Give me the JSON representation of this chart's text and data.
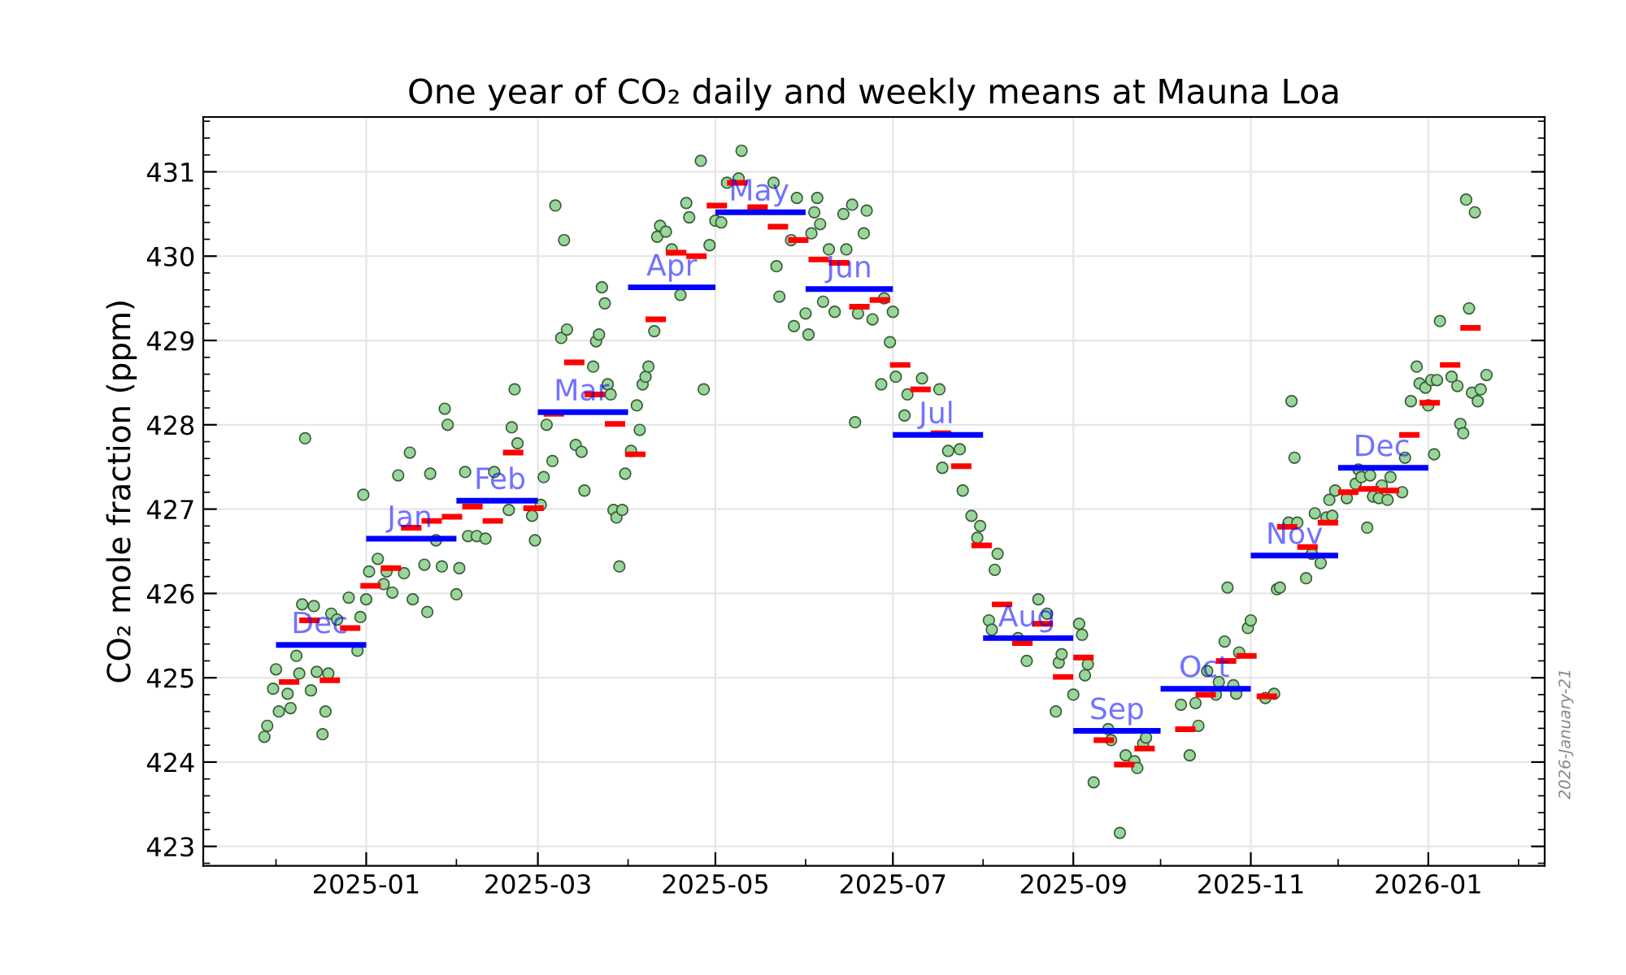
{
  "chart_data": {
    "type": "scatter",
    "title": "One year of CO₂ daily and weekly means at Mauna Loa",
    "ylabel": "CO₂ mole fraction (ppm)",
    "xlim": [
      "2024-11-06",
      "2026-02-10"
    ],
    "xticks": [
      "2025-01",
      "2025-03",
      "2025-05",
      "2025-07",
      "2025-09",
      "2025-11",
      "2026-01"
    ],
    "ylim": [
      422.77,
      431.65
    ],
    "yticks": [
      423,
      424,
      425,
      426,
      427,
      428,
      429,
      430,
      431
    ],
    "grid": true,
    "series": [
      {
        "type": "scatter",
        "marker": "circle",
        "color": "#99d699",
        "x": [
          "2024-11-27",
          "2024-11-28",
          "2024-11-30",
          "2024-12-01",
          "2024-12-02",
          "2024-12-05",
          "2024-12-06",
          "2024-12-08",
          "2024-12-09",
          "2024-12-10",
          "2024-12-11",
          "2024-12-13",
          "2024-12-14",
          "2024-12-15",
          "2024-12-17",
          "2024-12-18",
          "2024-12-19",
          "2024-12-20",
          "2024-12-22",
          "2024-12-26",
          "2024-12-29",
          "2024-12-30",
          "2024-12-31",
          "2025-01-01",
          "2025-01-02",
          "2025-01-05",
          "2025-01-07",
          "2025-01-08",
          "2025-01-10",
          "2025-01-12",
          "2025-01-14",
          "2025-01-16",
          "2025-01-17",
          "2025-01-21",
          "2025-01-22",
          "2025-01-23",
          "2025-01-25",
          "2025-01-27",
          "2025-01-28",
          "2025-01-29",
          "2025-02-01",
          "2025-02-02",
          "2025-02-04",
          "2025-02-05",
          "2025-02-08",
          "2025-02-11",
          "2025-02-14",
          "2025-02-19",
          "2025-02-20",
          "2025-02-21",
          "2025-02-22",
          "2025-02-27",
          "2025-02-28",
          "2025-03-02",
          "2025-03-03",
          "2025-03-04",
          "2025-03-06",
          "2025-03-07",
          "2025-03-09",
          "2025-03-10",
          "2025-03-11",
          "2025-03-14",
          "2025-03-16",
          "2025-03-17",
          "2025-03-20",
          "2025-03-21",
          "2025-03-22",
          "2025-03-23",
          "2025-03-24",
          "2025-03-25",
          "2025-03-26",
          "2025-03-27",
          "2025-03-28",
          "2025-03-29",
          "2025-03-30",
          "2025-03-31",
          "2025-04-02",
          "2025-04-04",
          "2025-04-05",
          "2025-04-06",
          "2025-04-07",
          "2025-04-08",
          "2025-04-10",
          "2025-04-11",
          "2025-04-12",
          "2025-04-14",
          "2025-04-16",
          "2025-04-19",
          "2025-04-21",
          "2025-04-22",
          "2025-04-26",
          "2025-04-27",
          "2025-04-29",
          "2025-05-01",
          "2025-05-03",
          "2025-05-05",
          "2025-05-09",
          "2025-05-10",
          "2025-05-21",
          "2025-05-22",
          "2025-05-23",
          "2025-05-27",
          "2025-05-28",
          "2025-05-29",
          "2025-06-01",
          "2025-06-02",
          "2025-06-03",
          "2025-06-04",
          "2025-06-05",
          "2025-06-06",
          "2025-06-07",
          "2025-06-09",
          "2025-06-11",
          "2025-06-14",
          "2025-06-15",
          "2025-06-17",
          "2025-06-18",
          "2025-06-19",
          "2025-06-21",
          "2025-06-22",
          "2025-06-24",
          "2025-06-27",
          "2025-06-28",
          "2025-06-30",
          "2025-07-01",
          "2025-07-02",
          "2025-07-05",
          "2025-07-06",
          "2025-07-11",
          "2025-07-17",
          "2025-07-18",
          "2025-07-20",
          "2025-07-24",
          "2025-07-25",
          "2025-07-28",
          "2025-07-30",
          "2025-07-31",
          "2025-08-03",
          "2025-08-04",
          "2025-08-05",
          "2025-08-06",
          "2025-08-13",
          "2025-08-16",
          "2025-08-20",
          "2025-08-23",
          "2025-08-26",
          "2025-08-27",
          "2025-08-28",
          "2025-09-01",
          "2025-09-03",
          "2025-09-04",
          "2025-09-05",
          "2025-09-06",
          "2025-09-08",
          "2025-09-13",
          "2025-09-14",
          "2025-09-17",
          "2025-09-19",
          "2025-09-22",
          "2025-09-23",
          "2025-09-25",
          "2025-09-26",
          "2025-10-08",
          "2025-10-11",
          "2025-10-13",
          "2025-10-14",
          "2025-10-17",
          "2025-10-20",
          "2025-10-21",
          "2025-10-23",
          "2025-10-24",
          "2025-10-26",
          "2025-10-27",
          "2025-10-28",
          "2025-10-31",
          "2025-11-01",
          "2025-11-06",
          "2025-11-09",
          "2025-11-10",
          "2025-11-11",
          "2025-11-14",
          "2025-11-15",
          "2025-11-16",
          "2025-11-17",
          "2025-11-20",
          "2025-11-22",
          "2025-11-23",
          "2025-11-25",
          "2025-11-27",
          "2025-11-28",
          "2025-11-29",
          "2025-11-30",
          "2025-12-04",
          "2025-12-07",
          "2025-12-08",
          "2025-12-09",
          "2025-12-11",
          "2025-12-12",
          "2025-12-13",
          "2025-12-15",
          "2025-12-16",
          "2025-12-18",
          "2025-12-19",
          "2025-12-23",
          "2025-12-24",
          "2025-12-26",
          "2025-12-28",
          "2025-12-29",
          "2025-12-31",
          "2026-01-01",
          "2026-01-02",
          "2026-01-03",
          "2026-01-04",
          "2026-01-05",
          "2026-01-09",
          "2026-01-11",
          "2026-01-12",
          "2026-01-13",
          "2026-01-14",
          "2026-01-15",
          "2026-01-16",
          "2026-01-17",
          "2026-01-18",
          "2026-01-19",
          "2026-01-21"
        ],
        "values": [
          424.3,
          424.43,
          424.87,
          425.1,
          424.6,
          424.81,
          424.64,
          425.26,
          425.05,
          425.87,
          427.84,
          424.85,
          425.85,
          425.07,
          424.33,
          424.6,
          425.05,
          425.76,
          425.69,
          425.95,
          425.32,
          425.72,
          427.17,
          425.93,
          426.26,
          426.41,
          426.11,
          426.26,
          426.01,
          427.4,
          426.24,
          427.67,
          425.93,
          426.34,
          425.78,
          427.42,
          426.63,
          426.32,
          428.19,
          428.0,
          425.99,
          426.3,
          427.44,
          426.68,
          426.68,
          426.65,
          427.44,
          426.99,
          427.97,
          428.42,
          427.78,
          426.92,
          426.63,
          427.05,
          427.38,
          428.0,
          427.57,
          430.6,
          429.03,
          430.19,
          429.13,
          427.76,
          427.68,
          427.22,
          428.69,
          428.99,
          429.07,
          429.63,
          429.44,
          428.48,
          428.36,
          426.99,
          426.9,
          426.32,
          426.99,
          427.42,
          427.69,
          428.23,
          427.94,
          428.48,
          428.57,
          428.69,
          429.11,
          430.23,
          430.36,
          430.29,
          430.08,
          429.54,
          430.63,
          430.46,
          431.13,
          428.42,
          430.13,
          430.42,
          430.4,
          430.87,
          430.92,
          431.25,
          430.87,
          429.88,
          429.52,
          430.19,
          429.17,
          430.69,
          429.32,
          429.07,
          430.27,
          430.52,
          430.69,
          430.38,
          429.46,
          430.08,
          429.34,
          430.5,
          430.08,
          430.61,
          428.03,
          429.32,
          430.27,
          430.54,
          429.25,
          428.48,
          429.5,
          428.98,
          429.34,
          428.57,
          428.11,
          428.36,
          428.55,
          428.42,
          427.49,
          427.69,
          427.71,
          427.22,
          426.92,
          426.66,
          426.8,
          425.68,
          425.57,
          426.28,
          426.47,
          425.47,
          425.2,
          425.93,
          425.76,
          424.6,
          425.18,
          425.28,
          424.8,
          425.64,
          425.51,
          425.03,
          425.16,
          423.76,
          424.39,
          424.26,
          423.16,
          424.08,
          424.01,
          423.93,
          424.22,
          424.29,
          424.68,
          424.08,
          424.7,
          424.43,
          425.08,
          424.8,
          424.95,
          425.43,
          426.07,
          424.91,
          424.81,
          425.3,
          425.59,
          425.68,
          424.76,
          424.81,
          426.05,
          426.07,
          426.84,
          428.28,
          427.61,
          426.84,
          426.18,
          426.47,
          426.95,
          426.36,
          426.9,
          427.11,
          426.92,
          427.22,
          427.13,
          427.3,
          427.47,
          427.38,
          426.78,
          427.4,
          427.15,
          427.13,
          427.28,
          427.11,
          427.38,
          427.2,
          427.61,
          428.28,
          428.69,
          428.49,
          428.44,
          428.23,
          428.53,
          427.65,
          428.53,
          429.23,
          428.57,
          428.46,
          428.01,
          427.9,
          430.67,
          429.38,
          428.38,
          430.52,
          428.28,
          428.42,
          428.59
        ]
      },
      {
        "type": "line",
        "color": "#ff0000",
        "x": [
          "2024-12-02",
          "2024-12-09",
          null,
          "2024-12-09",
          "2024-12-16",
          null,
          "2024-12-16",
          "2024-12-23",
          null,
          "2024-12-23",
          "2024-12-30",
          null,
          "2024-12-30",
          "2025-01-06",
          null,
          "2025-01-06",
          "2025-01-13",
          null,
          "2025-01-13",
          "2025-01-20",
          null,
          "2025-01-20",
          "2025-01-27",
          null,
          "2025-01-27",
          "2025-02-03",
          null,
          "2025-02-03",
          "2025-02-10",
          null,
          "2025-02-10",
          "2025-02-17",
          null,
          "2025-02-17",
          "2025-02-24",
          null,
          "2025-02-24",
          "2025-03-03",
          null,
          "2025-03-03",
          "2025-03-10",
          null,
          "2025-03-10",
          "2025-03-17",
          null,
          "2025-03-17",
          "2025-03-24",
          null,
          "2025-03-24",
          "2025-03-31",
          null,
          "2025-03-31",
          "2025-04-07",
          null,
          "2025-04-07",
          "2025-04-14",
          null,
          "2025-04-14",
          "2025-04-21",
          null,
          "2025-04-21",
          "2025-04-28",
          null,
          "2025-04-28",
          "2025-05-05",
          null,
          "2025-05-05",
          "2025-05-12",
          null,
          "2025-05-12",
          "2025-05-19",
          null,
          "2025-05-19",
          "2025-05-26",
          null,
          "2025-05-26",
          "2025-06-02",
          null,
          "2025-06-02",
          "2025-06-09",
          null,
          "2025-06-09",
          "2025-06-16",
          null,
          "2025-06-16",
          "2025-06-23",
          null,
          "2025-06-23",
          "2025-06-30",
          null,
          "2025-06-30",
          "2025-07-07",
          null,
          "2025-07-07",
          "2025-07-14",
          null,
          "2025-07-14",
          "2025-07-21",
          null,
          "2025-07-21",
          "2025-07-28",
          null,
          "2025-07-28",
          "2025-08-04",
          null,
          "2025-08-04",
          "2025-08-11",
          null,
          "2025-08-11",
          "2025-08-18",
          null,
          "2025-08-18",
          "2025-08-25",
          null,
          "2025-08-25",
          "2025-09-01",
          null,
          "2025-09-01",
          "2025-09-08",
          null,
          "2025-09-08",
          "2025-09-15",
          null,
          "2025-09-15",
          "2025-09-22",
          null,
          "2025-09-22",
          "2025-09-29",
          null,
          "2025-10-06",
          "2025-10-13",
          null,
          "2025-10-13",
          "2025-10-20",
          null,
          "2025-10-20",
          "2025-10-27",
          null,
          "2025-10-27",
          "2025-11-03",
          null,
          "2025-11-03",
          "2025-11-10",
          null,
          "2025-11-10",
          "2025-11-17",
          null,
          "2025-11-17",
          "2025-11-24",
          null,
          "2025-11-24",
          "2025-12-01",
          null,
          "2025-12-01",
          "2025-12-08",
          null,
          "2025-12-08",
          "2025-12-15",
          null,
          "2025-12-15",
          "2025-12-22",
          null,
          "2025-12-22",
          "2025-12-29",
          null,
          "2025-12-29",
          "2026-01-05",
          null,
          "2026-01-05",
          "2026-01-12",
          null,
          "2026-01-12",
          "2026-01-19"
        ],
        "values": [
          424.95,
          424.95,
          null,
          425.68,
          425.68,
          null,
          424.97,
          424.97,
          null,
          425.59,
          425.59,
          null,
          426.09,
          426.09,
          null,
          426.3,
          426.3,
          null,
          426.78,
          426.78,
          null,
          426.86,
          426.86,
          null,
          426.91,
          426.91,
          null,
          427.03,
          427.03,
          null,
          426.86,
          426.86,
          null,
          427.67,
          427.67,
          null,
          427.01,
          427.01,
          null,
          428.13,
          428.13,
          null,
          428.74,
          428.74,
          null,
          428.36,
          428.36,
          null,
          428.01,
          428.01,
          null,
          427.65,
          427.65,
          null,
          429.25,
          429.25,
          null,
          430.04,
          430.04,
          null,
          430.0,
          430.0,
          null,
          430.6,
          430.6,
          null,
          430.87,
          430.87,
          null,
          430.58,
          430.58,
          null,
          430.35,
          430.35,
          null,
          430.19,
          430.19,
          null,
          429.96,
          429.96,
          null,
          429.92,
          429.92,
          null,
          429.4,
          429.4,
          null,
          429.48,
          429.48,
          null,
          428.71,
          428.71,
          null,
          428.42,
          428.42,
          null,
          427.9,
          427.9,
          null,
          427.51,
          427.51,
          null,
          426.57,
          426.57,
          null,
          425.87,
          425.87,
          null,
          425.41,
          425.41,
          null,
          425.64,
          425.64,
          null,
          425.01,
          425.01,
          null,
          425.24,
          425.24,
          null,
          424.26,
          424.26,
          null,
          423.97,
          423.97,
          null,
          424.16,
          424.16,
          null,
          424.39,
          424.39,
          null,
          424.8,
          424.8,
          null,
          425.2,
          425.2,
          null,
          425.26,
          425.26,
          null,
          424.78,
          424.78,
          null,
          426.79,
          426.79,
          null,
          426.55,
          426.55,
          null,
          426.84,
          426.84,
          null,
          427.2,
          427.2,
          null,
          427.24,
          427.24,
          null,
          427.22,
          427.22,
          null,
          427.88,
          427.88,
          null,
          428.26,
          428.26,
          null,
          428.71,
          428.71,
          null,
          429.15,
          429.15
        ]
      },
      {
        "type": "line",
        "color": "#0000ff",
        "x": [
          "2024-12-01",
          "2025-01-01",
          null,
          "2025-01-01",
          "2025-02-01",
          null,
          "2025-02-01",
          "2025-03-01",
          null,
          "2025-03-01",
          "2025-04-01",
          null,
          "2025-04-01",
          "2025-05-01",
          null,
          "2025-05-01",
          "2025-06-01",
          null,
          "2025-06-01",
          "2025-07-01",
          null,
          "2025-07-01",
          "2025-08-01",
          null,
          "2025-08-01",
          "2025-09-01",
          null,
          "2025-09-01",
          "2025-10-01",
          null,
          "2025-10-01",
          "2025-11-01",
          null,
          "2025-11-01",
          "2025-12-01",
          null,
          "2025-12-01",
          "2026-01-01"
        ],
        "values": [
          425.39,
          425.39,
          null,
          426.65,
          426.65,
          null,
          427.1,
          427.1,
          null,
          428.15,
          428.15,
          null,
          429.63,
          429.63,
          null,
          430.52,
          430.52,
          null,
          429.61,
          429.61,
          null,
          427.88,
          427.88,
          null,
          425.47,
          425.47,
          null,
          424.37,
          424.37,
          null,
          424.87,
          424.87,
          null,
          426.45,
          426.45,
          null,
          427.49,
          427.49
        ]
      }
    ],
    "annotations": [
      {
        "text": "Dec",
        "x": "2024-12-16",
        "y": 425.39
      },
      {
        "text": "Jan",
        "x": "2025-01-16",
        "y": 426.65
      },
      {
        "text": "Feb",
        "x": "2025-02-16",
        "y": 427.1
      },
      {
        "text": "Mar",
        "x": "2025-03-16",
        "y": 428.15
      },
      {
        "text": "Apr",
        "x": "2025-04-16",
        "y": 429.63
      },
      {
        "text": "May",
        "x": "2025-05-16",
        "y": 430.52
      },
      {
        "text": "Jun",
        "x": "2025-06-16",
        "y": 429.61
      },
      {
        "text": "Jul",
        "x": "2025-07-16",
        "y": 427.88
      },
      {
        "text": "Aug",
        "x": "2025-08-16",
        "y": 425.47
      },
      {
        "text": "Sep",
        "x": "2025-09-16",
        "y": 424.37
      },
      {
        "text": "Oct",
        "x": "2025-10-16",
        "y": 424.87
      },
      {
        "text": "Nov",
        "x": "2025-11-16",
        "y": 426.45
      },
      {
        "text": "Dec",
        "x": "2025-12-16",
        "y": 427.49
      },
      "2026-January-21"
    ]
  }
}
